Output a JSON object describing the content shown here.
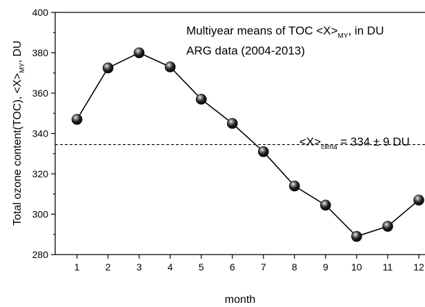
{
  "chart_data": {
    "type": "line",
    "xlabel": "month",
    "ylabel": {
      "main": "Total ozone content(TOC), <X>",
      "sub": "MY",
      "unit": ", DU"
    },
    "x": [
      1,
      2,
      3,
      4,
      5,
      6,
      7,
      8,
      9,
      10,
      11,
      12
    ],
    "xticks": [
      "1",
      "2",
      "3",
      "4",
      "5",
      "6",
      "7",
      "8",
      "9",
      "10",
      "11",
      "12"
    ],
    "yticks": [
      "280",
      "300",
      "320",
      "340",
      "360",
      "380",
      "400"
    ],
    "xlim": [
      0.3,
      12.2
    ],
    "ylim": [
      280,
      400
    ],
    "grid": false,
    "series": [
      {
        "values": [
          347,
          372.5,
          380,
          373,
          357,
          345,
          331,
          314,
          304.5,
          289,
          294,
          307
        ],
        "marker": "sphere",
        "color": "#000000"
      }
    ],
    "reference_line": {
      "y": 334.5,
      "style": "dashed"
    },
    "annotations": {
      "title_line1": {
        "pre": "Multiyear means of TOC <X>",
        "sub": "MY",
        "post": ", in DU"
      },
      "title_line2": "ARG data (2004-2013)",
      "clima_label": {
        "pre": "<X>",
        "sub": "clima",
        "post": " = 334 ± 9 DU"
      }
    }
  }
}
